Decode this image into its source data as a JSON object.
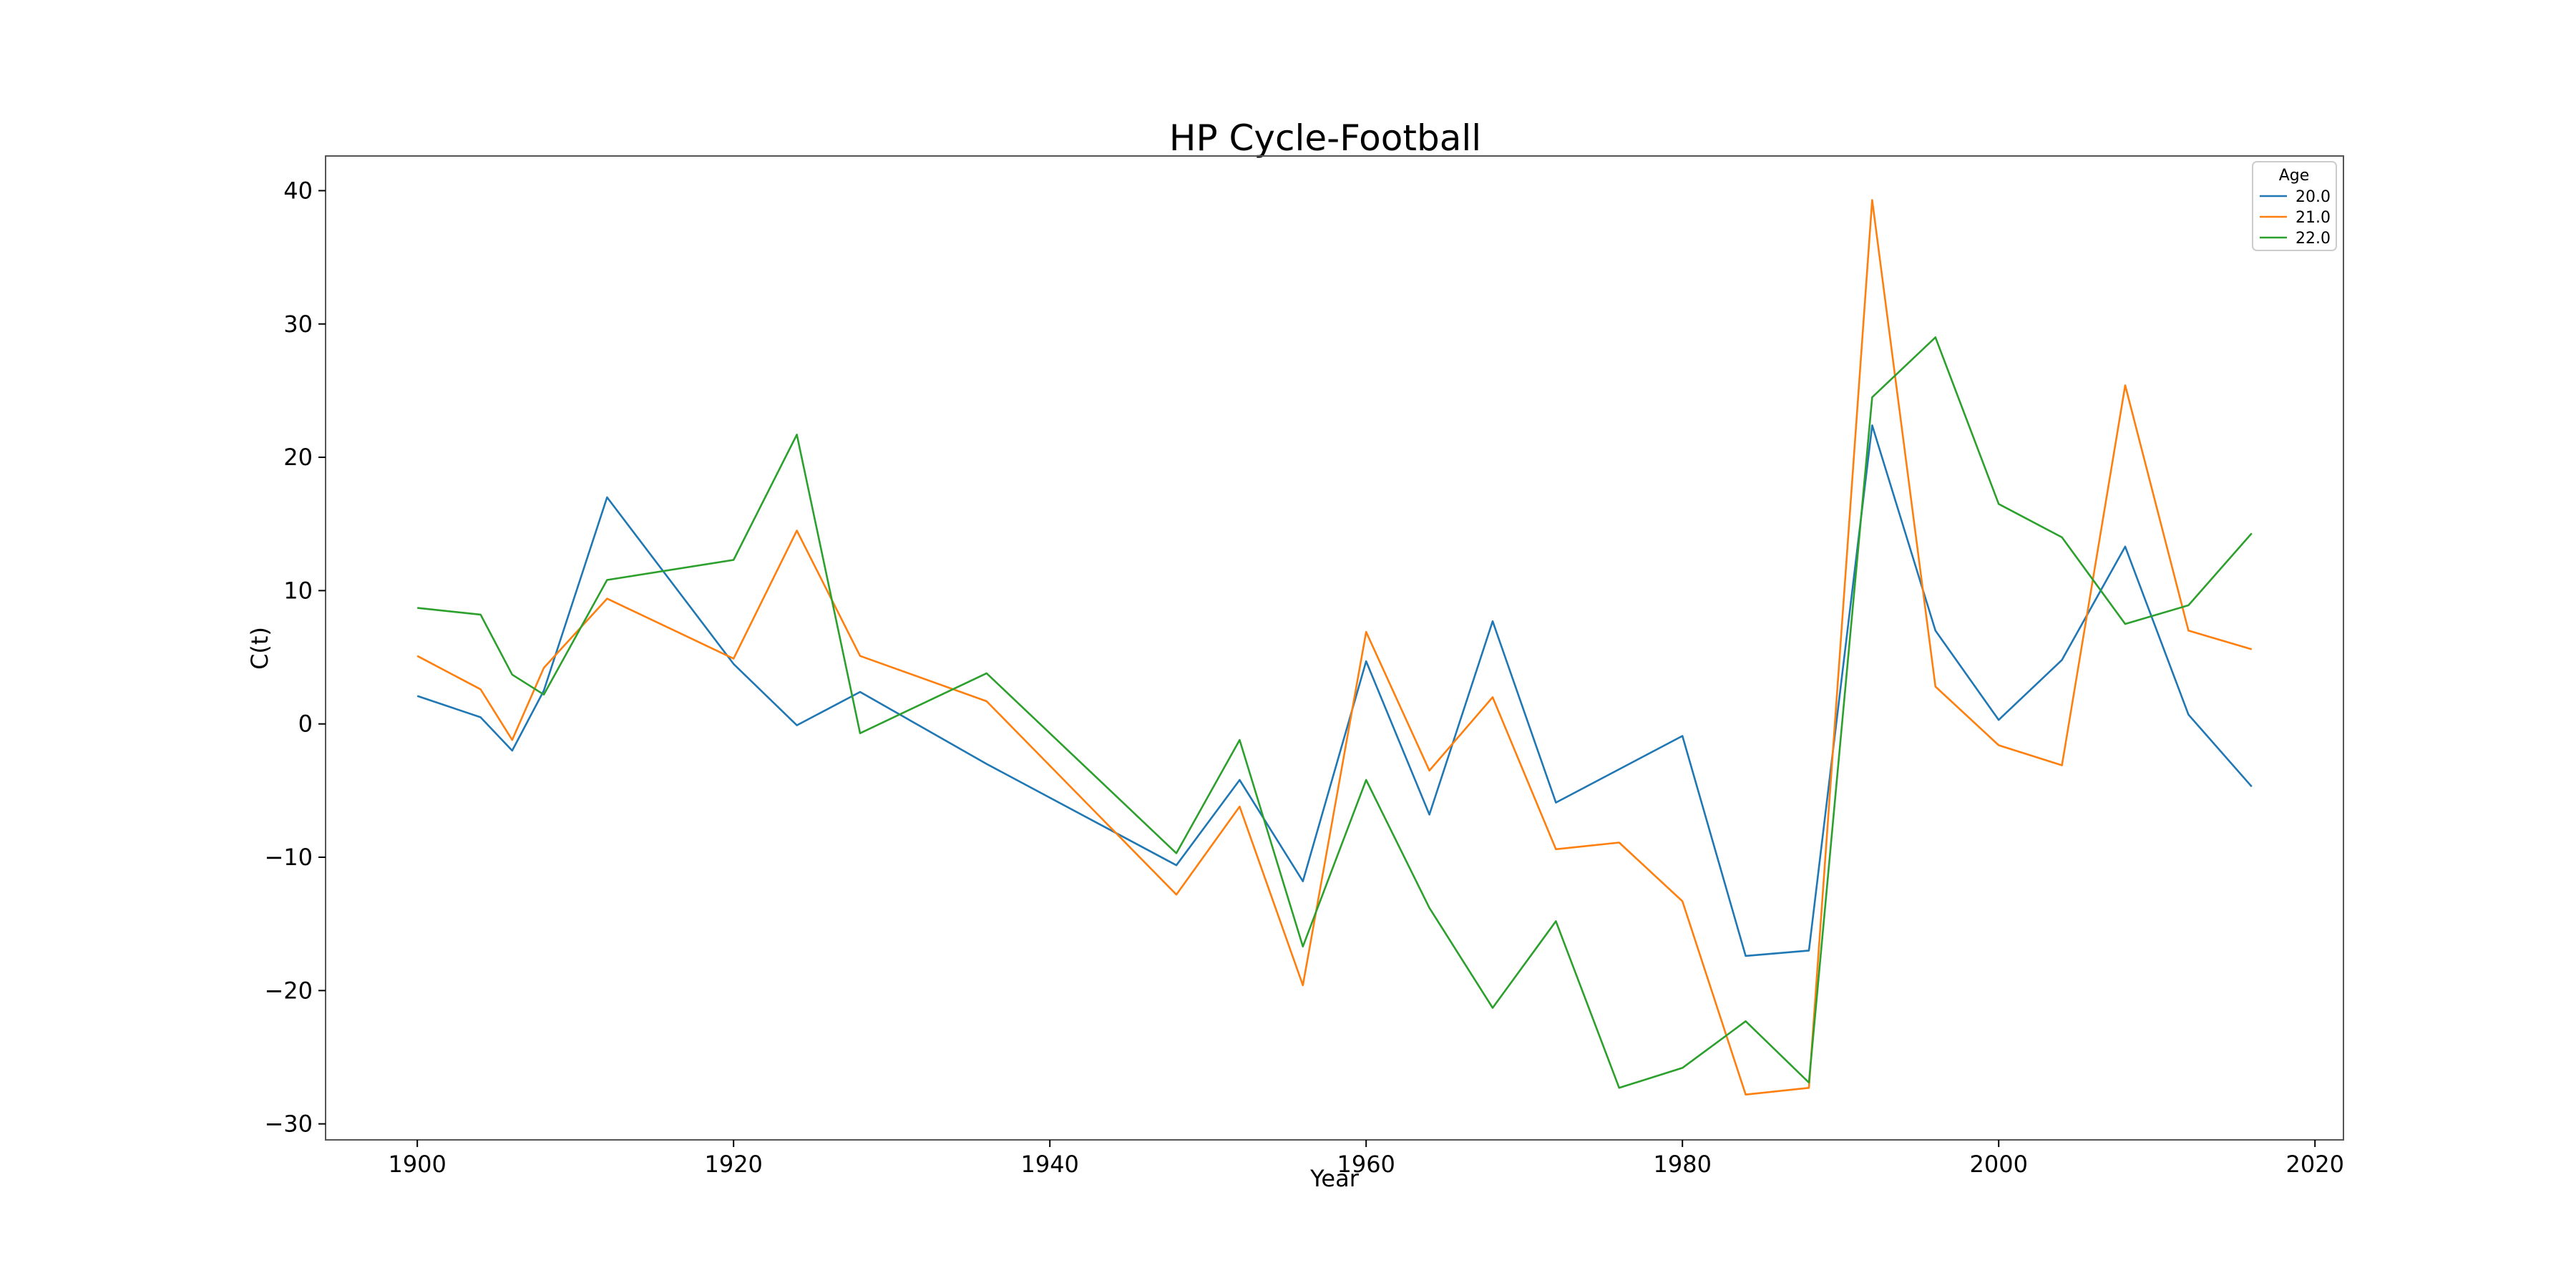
{
  "chart_data": {
    "type": "line",
    "title": "HP Cycle-Football",
    "xlabel": "Year",
    "ylabel": "C(t)",
    "xlim": [
      1894.2,
      2021.8
    ],
    "ylim": [
      -31.2,
      42.6
    ],
    "x_ticks": [
      1900,
      1920,
      1940,
      1960,
      1980,
      2000,
      2020
    ],
    "y_ticks": [
      -30,
      -20,
      -10,
      0,
      10,
      20,
      30,
      40
    ],
    "grid": false,
    "legend": {
      "title": "Age",
      "position": "top-right"
    },
    "series": [
      {
        "name": "20.0",
        "color": "#1f77b4",
        "x": [
          1900,
          1904,
          1906,
          1908,
          1912,
          1920,
          1924,
          1928,
          1936,
          1948,
          1952,
          1956,
          1960,
          1964,
          1968,
          1972,
          1980,
          1984,
          1988,
          1992,
          1996,
          2000,
          2004,
          2008,
          2012,
          2016
        ],
        "y": [
          2.1,
          0.5,
          -2.0,
          2.5,
          17.0,
          4.5,
          -0.1,
          2.4,
          -3.0,
          -10.6,
          -4.2,
          -11.8,
          4.7,
          -6.8,
          7.7,
          -5.9,
          -0.9,
          -17.4,
          -17.0,
          22.4,
          7.0,
          0.3,
          4.8,
          13.3,
          0.7,
          -4.7
        ]
      },
      {
        "name": "21.0",
        "color": "#ff7f0e",
        "x": [
          1900,
          1904,
          1906,
          1908,
          1912,
          1920,
          1924,
          1928,
          1936,
          1948,
          1952,
          1956,
          1960,
          1964,
          1968,
          1972,
          1976,
          1980,
          1984,
          1988,
          1992,
          1996,
          2000,
          2004,
          2008,
          2012,
          2016
        ],
        "y": [
          5.1,
          2.6,
          -1.2,
          4.2,
          9.4,
          4.9,
          14.5,
          5.1,
          1.7,
          -12.8,
          -6.2,
          -19.6,
          6.9,
          -3.5,
          2.0,
          -9.4,
          -8.9,
          -13.3,
          -27.8,
          -27.3,
          39.3,
          2.8,
          -1.6,
          -3.1,
          25.4,
          7.0,
          5.6
        ]
      },
      {
        "name": "22.0",
        "color": "#2ca02c",
        "x": [
          1900,
          1904,
          1906,
          1908,
          1912,
          1920,
          1924,
          1928,
          1936,
          1948,
          1952,
          1956,
          1960,
          1964,
          1968,
          1972,
          1976,
          1980,
          1984,
          1988,
          1992,
          1996,
          2000,
          2004,
          2008,
          2012,
          2016
        ],
        "y": [
          8.7,
          8.2,
          3.7,
          2.2,
          10.8,
          12.3,
          21.7,
          -0.7,
          3.8,
          -9.7,
          -1.2,
          -16.7,
          -4.2,
          -13.8,
          -21.3,
          -14.8,
          -27.3,
          -25.8,
          -22.3,
          -26.9,
          24.5,
          29.0,
          16.5,
          14.0,
          7.5,
          8.9,
          14.3
        ]
      }
    ]
  }
}
